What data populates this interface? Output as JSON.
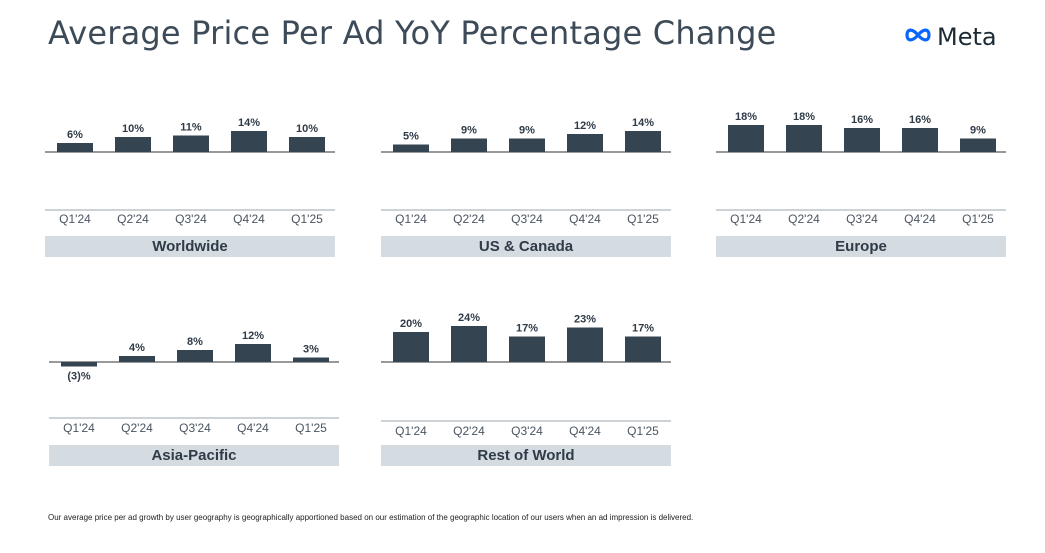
{
  "title": "Average Price Per Ad YoY Percentage Change",
  "logo": {
    "text": "Meta",
    "icon": "meta-infinity-logo"
  },
  "footnote": "Our average price per ad growth by user geography is geographically apportioned based on our estimation of the geographic location of our users when an ad impression is delivered.",
  "colors": {
    "bar": "#344450",
    "label_band": "#d4dbe1",
    "title": "#3d4b59",
    "logo": "#0866ff"
  },
  "chart_data": [
    {
      "type": "bar",
      "title": "Worldwide",
      "categories": [
        "Q1'24",
        "Q2'24",
        "Q3'24",
        "Q4'24",
        "Q1'25"
      ],
      "values": [
        6,
        10,
        11,
        14,
        10
      ],
      "labels": [
        "6%",
        "10%",
        "11%",
        "14%",
        "10%"
      ]
    },
    {
      "type": "bar",
      "title": "US & Canada",
      "categories": [
        "Q1'24",
        "Q2'24",
        "Q3'24",
        "Q4'24",
        "Q1'25"
      ],
      "values": [
        5,
        9,
        9,
        12,
        14
      ],
      "labels": [
        "5%",
        "9%",
        "9%",
        "12%",
        "14%"
      ]
    },
    {
      "type": "bar",
      "title": "Europe",
      "categories": [
        "Q1'24",
        "Q2'24",
        "Q3'24",
        "Q4'24",
        "Q1'25"
      ],
      "values": [
        18,
        18,
        16,
        16,
        9
      ],
      "labels": [
        "18%",
        "18%",
        "16%",
        "16%",
        "9%"
      ]
    },
    {
      "type": "bar",
      "title": "Asia-Pacific",
      "categories": [
        "Q1'24",
        "Q2'24",
        "Q3'24",
        "Q4'24",
        "Q1'25"
      ],
      "values": [
        -3,
        4,
        8,
        12,
        3
      ],
      "labels": [
        "(3)%",
        "4%",
        "8%",
        "12%",
        "3%"
      ]
    },
    {
      "type": "bar",
      "title": "Rest of World",
      "categories": [
        "Q1'24",
        "Q2'24",
        "Q3'24",
        "Q4'24",
        "Q1'25"
      ],
      "values": [
        20,
        24,
        17,
        23,
        17
      ],
      "labels": [
        "20%",
        "24%",
        "17%",
        "23%",
        "17%"
      ]
    }
  ]
}
